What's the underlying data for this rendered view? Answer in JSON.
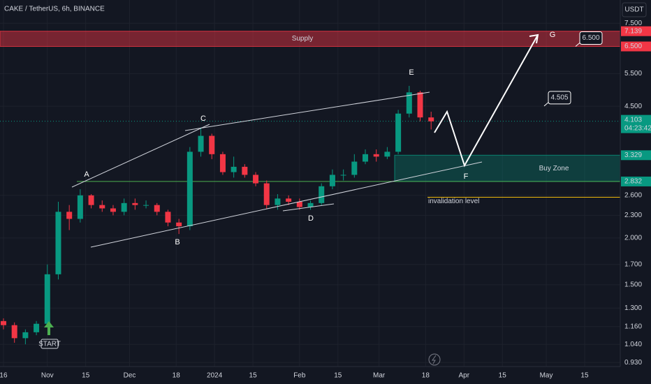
{
  "chart_data": {
    "type": "candlestick",
    "title": "CAKE / TetherUS, 6h, BINANCE",
    "y_unit": "USDT",
    "log_scale": true,
    "grid": true,
    "up_color": "#089981",
    "down_color": "#f23645",
    "xlim": [
      -1.27,
      225
    ],
    "ylim": [
      0.907,
      8.65
    ],
    "xticks": [
      {
        "value": 0,
        "label": "16"
      },
      {
        "value": 16,
        "label": "Nov"
      },
      {
        "value": 30,
        "label": "15"
      },
      {
        "value": 46,
        "label": "Dec"
      },
      {
        "value": 63,
        "label": "18"
      },
      {
        "value": 77,
        "label": "2024"
      },
      {
        "value": 91,
        "label": "15"
      },
      {
        "value": 108,
        "label": "Feb"
      },
      {
        "value": 122,
        "label": "15"
      },
      {
        "value": 137,
        "label": "Mar"
      },
      {
        "value": 154,
        "label": "18"
      },
      {
        "value": 168,
        "label": "Apr"
      },
      {
        "value": 182,
        "label": "15"
      },
      {
        "value": 198,
        "label": "May"
      },
      {
        "value": 212,
        "label": "15"
      }
    ],
    "yticks": [
      {
        "value": 7.5,
        "label": "7.500"
      },
      {
        "value": 5.5,
        "label": "5.500"
      },
      {
        "value": 4.5,
        "label": "4.500"
      },
      {
        "value": 2.6,
        "label": "2.600"
      },
      {
        "value": 2.3,
        "label": "2.300"
      },
      {
        "value": 2,
        "label": "2.000"
      },
      {
        "value": 1.7,
        "label": "1.700"
      },
      {
        "value": 1.5,
        "label": "1.500"
      },
      {
        "value": 1.3,
        "label": "1.300"
      },
      {
        "value": 1.16,
        "label": "1.160"
      },
      {
        "value": 1.04,
        "label": "1.040"
      },
      {
        "value": 0.93,
        "label": "0.930"
      }
    ],
    "x": [
      0,
      4,
      8,
      12,
      16,
      20,
      24,
      28,
      32,
      36,
      40,
      44,
      48,
      52,
      56,
      60,
      64,
      68,
      72,
      76,
      80,
      84,
      88,
      92,
      96,
      100,
      104,
      108,
      112,
      116,
      120,
      124,
      128,
      132,
      136,
      140,
      144,
      148,
      152,
      156
    ],
    "open": [
      1.2,
      1.17,
      1.08,
      1.12,
      1.18,
      1.6,
      2.35,
      2.25,
      2.6,
      2.45,
      2.4,
      2.35,
      2.48,
      2.45,
      2.45,
      2.35,
      2.2,
      2.15,
      3.4,
      3.75,
      3.35,
      3.0,
      3.1,
      2.95,
      2.8,
      2.45,
      2.55,
      2.5,
      2.42,
      2.48,
      2.75,
      2.95,
      2.95,
      3.2,
      3.35,
      3.3,
      3.4,
      4.3,
      4.9,
      4.2
    ],
    "high": [
      1.22,
      1.19,
      1.14,
      1.2,
      1.7,
      2.5,
      2.45,
      2.7,
      2.62,
      2.52,
      2.45,
      2.55,
      2.55,
      2.52,
      2.48,
      2.38,
      2.25,
      3.5,
      3.95,
      3.8,
      3.4,
      3.3,
      3.15,
      3.0,
      2.85,
      2.62,
      2.6,
      2.55,
      2.52,
      2.8,
      3.05,
      3.05,
      3.35,
      3.45,
      3.45,
      3.5,
      4.4,
      5.1,
      4.95,
      4.35
    ],
    "low": [
      1.14,
      1.05,
      1.04,
      1.1,
      1.16,
      1.55,
      2.1,
      2.2,
      2.4,
      2.35,
      2.3,
      2.3,
      2.38,
      2.4,
      2.3,
      2.15,
      2.05,
      2.1,
      3.3,
      3.25,
      2.95,
      2.9,
      2.9,
      2.75,
      2.4,
      2.38,
      2.45,
      2.38,
      2.38,
      2.45,
      2.7,
      2.85,
      2.9,
      3.15,
      3.2,
      3.25,
      3.35,
      4.2,
      4.1,
      3.9
    ],
    "close": [
      1.17,
      1.08,
      1.12,
      1.18,
      1.6,
      2.35,
      2.25,
      2.6,
      2.45,
      2.4,
      2.35,
      2.48,
      2.45,
      2.45,
      2.35,
      2.2,
      2.15,
      3.4,
      3.75,
      3.35,
      3.0,
      3.1,
      2.95,
      2.8,
      2.45,
      2.55,
      2.5,
      2.42,
      2.48,
      2.75,
      2.95,
      2.95,
      3.2,
      3.35,
      3.3,
      3.4,
      4.3,
      4.9,
      4.2,
      4.1
    ],
    "current_price": {
      "value": 4.103,
      "label": "4.103",
      "countdown": "04:23:42",
      "color": "#089981"
    },
    "zones": [
      {
        "name": "Supply",
        "range": [
          6.5,
          7.139
        ],
        "range_labels": [
          "6.500",
          "7.139"
        ],
        "color": "#f23645"
      },
      {
        "name": "Buy Zone",
        "range": [
          2.832,
          3.329
        ],
        "range_labels": [
          "2.832",
          "3.329"
        ],
        "color": "#089981"
      }
    ],
    "invalidation_level": {
      "name": "invalidation level",
      "value": 2.57,
      "color": "#f0b90b"
    },
    "wave_labels": [
      "A",
      "B",
      "C",
      "D",
      "E",
      "F",
      "G"
    ],
    "start_label": "START",
    "targets": [
      {
        "value": 6.5,
        "label": "6.500"
      },
      {
        "value": 4.505,
        "label": "4.505"
      }
    ]
  }
}
